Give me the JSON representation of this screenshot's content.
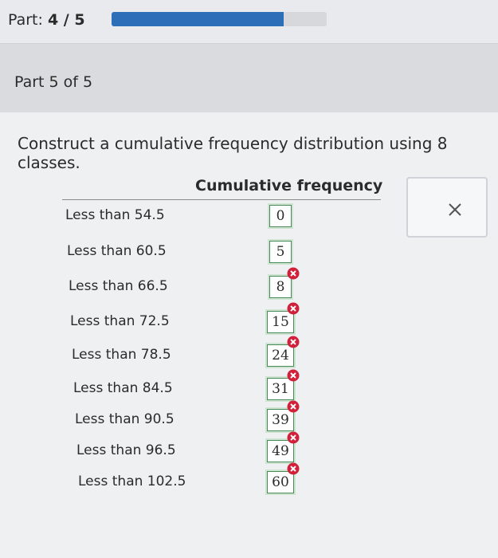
{
  "header": {
    "part_label": "Part:",
    "part_progress": "4 / 5"
  },
  "section": {
    "title": "Part 5 of 5"
  },
  "prompt": "Construct a cumulative frequency distribution using 8 classes.",
  "table": {
    "column_header": "Cumulative frequency",
    "rows": [
      {
        "label": "Less than 54.5",
        "value": 0
      },
      {
        "label": "Less than 60.5",
        "value": 5
      },
      {
        "label": "Less than 66.5",
        "value": 8
      },
      {
        "label": "Less than 72.5",
        "value": 15
      },
      {
        "label": "Less than 78.5",
        "value": 24
      },
      {
        "label": "Less than 84.5",
        "value": 31
      },
      {
        "label": "Less than 90.5",
        "value": 39
      },
      {
        "label": "Less than 96.5",
        "value": 49
      },
      {
        "label": "Less than 102.5",
        "value": 60
      }
    ]
  }
}
